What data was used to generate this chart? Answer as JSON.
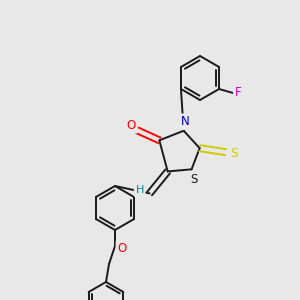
{
  "background_color": "#e8e8e8",
  "bond_color": "#1a1a1a",
  "atom_colors": {
    "O": "#ff0000",
    "N": "#0000cc",
    "S_thioxo": "#cccc00",
    "S_ring": "#1a1a1a",
    "F": "#cc00cc",
    "H": "#008888",
    "C": "#1a1a1a"
  },
  "figsize": [
    3.0,
    3.0
  ],
  "dpi": 100
}
